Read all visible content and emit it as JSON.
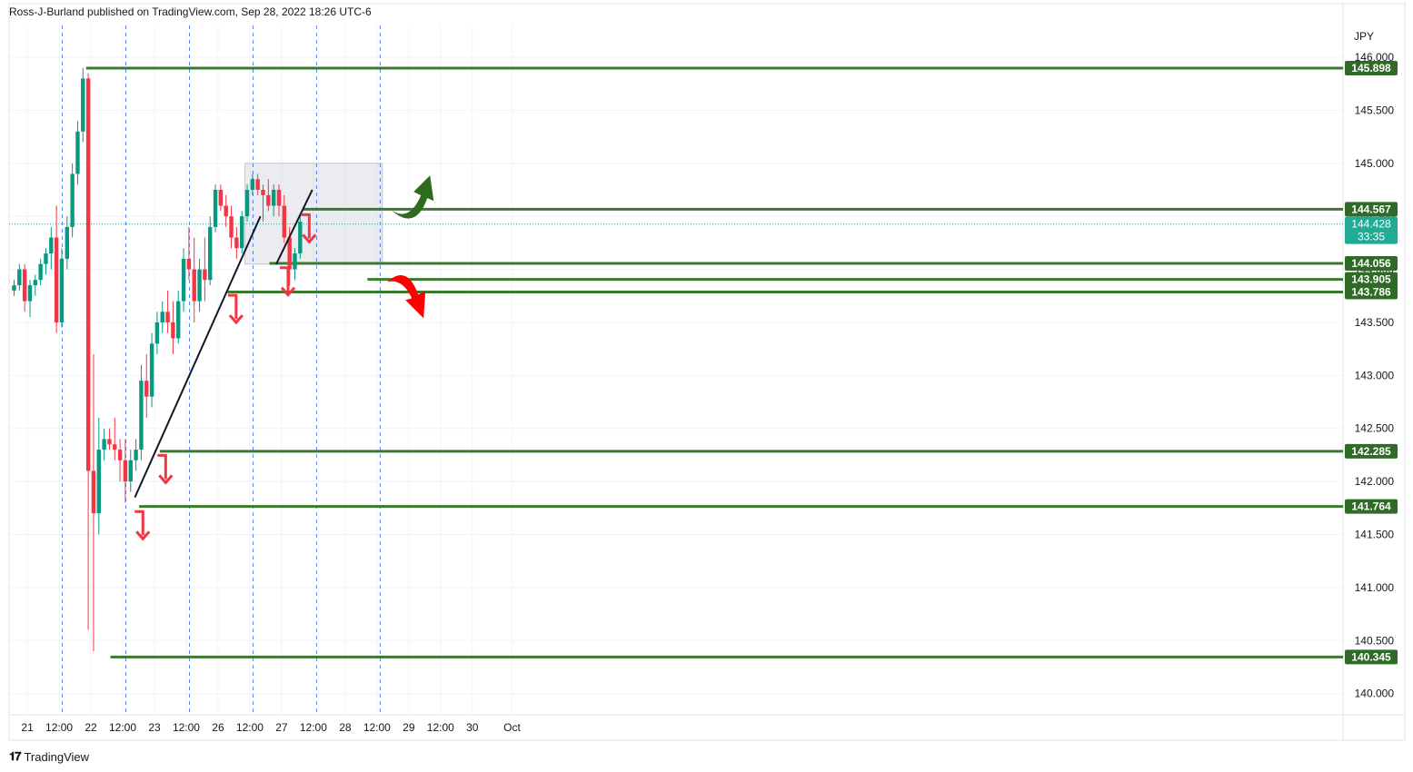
{
  "header": {
    "publisher_line": "Ross-J-Burland published on TradingView.com, Sep 28, 2022 18:26 UTC-6"
  },
  "footer": {
    "brand": "TradingView",
    "logo_icon": "tradingview-logo-icon"
  },
  "colors": {
    "up": "#089981",
    "down": "#f23645",
    "level": "#3b7a2e",
    "label_bg": "#2f6b26",
    "grid": "#f0f3fa",
    "session_line": "#2962ff",
    "box_fill": "#d1d4dc",
    "current_price": "#22ab94",
    "arrow_up": "#2e6b1f",
    "arrow_down": "#ff0000"
  },
  "chart_data": {
    "type": "candlestick",
    "symbol_currency": "JPY",
    "ylim": [
      139.8,
      146.3
    ],
    "price_ticks": [
      "140.000",
      "140.500",
      "141.000",
      "141.500",
      "142.000",
      "142.500",
      "143.000",
      "143.500",
      "144.000",
      "144.500",
      "145.000",
      "145.500",
      "146.000"
    ],
    "time_ticks": [
      {
        "label": "21",
        "i": 2.5
      },
      {
        "label": "12:00",
        "i": 8.5
      },
      {
        "label": "22",
        "i": 14.5
      },
      {
        "label": "12:00",
        "i": 20.5
      },
      {
        "label": "23",
        "i": 26.5
      },
      {
        "label": "12:00",
        "i": 32.5
      },
      {
        "label": "26",
        "i": 38.5
      },
      {
        "label": "12:00",
        "i": 44.5
      },
      {
        "label": "27",
        "i": 50.5
      },
      {
        "label": "12:00",
        "i": 56.5
      },
      {
        "label": "28",
        "i": 62.5
      },
      {
        "label": "12:00",
        "i": 68.5
      },
      {
        "label": "29",
        "i": 74.5
      },
      {
        "label": "12:00",
        "i": 80.5
      },
      {
        "label": "30",
        "i": 86.5
      },
      {
        "label": "Oct",
        "i": 94
      }
    ],
    "session_lines_i": [
      9.1,
      21.1,
      33.1,
      45.1,
      57.1,
      69.1
    ],
    "candles": [
      [
        143.8,
        143.9,
        143.75,
        143.85
      ],
      [
        143.85,
        144.05,
        143.8,
        144.0
      ],
      [
        144.0,
        144.05,
        143.6,
        143.7
      ],
      [
        143.7,
        143.9,
        143.55,
        143.85
      ],
      [
        143.85,
        143.95,
        143.75,
        143.9
      ],
      [
        143.9,
        144.1,
        143.85,
        144.05
      ],
      [
        144.05,
        144.2,
        143.95,
        144.15
      ],
      [
        144.15,
        144.4,
        144.0,
        144.3
      ],
      [
        144.3,
        144.6,
        143.4,
        143.5
      ],
      [
        143.5,
        144.2,
        143.45,
        144.1
      ],
      [
        144.1,
        144.5,
        144.0,
        144.4
      ],
      [
        144.4,
        145.0,
        144.3,
        144.9
      ],
      [
        144.9,
        145.4,
        144.8,
        145.3
      ],
      [
        145.3,
        145.9,
        145.2,
        145.8
      ],
      [
        145.8,
        145.85,
        140.6,
        142.1
      ],
      [
        142.1,
        143.2,
        140.4,
        141.7
      ],
      [
        141.7,
        142.6,
        141.5,
        142.3
      ],
      [
        142.3,
        142.5,
        142.2,
        142.4
      ],
      [
        142.4,
        142.5,
        142.3,
        142.35
      ],
      [
        142.35,
        142.6,
        142.2,
        142.3
      ],
      [
        142.3,
        142.4,
        142.0,
        142.2
      ],
      [
        142.2,
        142.4,
        141.8,
        142.0
      ],
      [
        142.0,
        142.3,
        141.9,
        142.2
      ],
      [
        142.2,
        142.4,
        142.1,
        142.3
      ],
      [
        142.3,
        143.1,
        142.2,
        142.95
      ],
      [
        142.95,
        143.2,
        142.6,
        142.8
      ],
      [
        142.8,
        143.4,
        142.7,
        143.3
      ],
      [
        143.3,
        143.6,
        143.2,
        143.5
      ],
      [
        143.5,
        143.7,
        143.4,
        143.6
      ],
      [
        143.6,
        143.8,
        143.4,
        143.5
      ],
      [
        143.5,
        143.7,
        143.2,
        143.35
      ],
      [
        143.35,
        143.8,
        143.3,
        143.7
      ],
      [
        143.7,
        144.2,
        143.6,
        144.1
      ],
      [
        144.1,
        144.4,
        143.9,
        144.0
      ],
      [
        144.0,
        144.3,
        143.5,
        143.7
      ],
      [
        143.7,
        144.1,
        143.6,
        144.0
      ],
      [
        144.0,
        144.3,
        143.7,
        143.9
      ],
      [
        143.9,
        144.5,
        143.85,
        144.4
      ],
      [
        144.4,
        144.8,
        144.35,
        144.75
      ],
      [
        144.75,
        144.8,
        144.55,
        144.6
      ],
      [
        144.6,
        144.7,
        144.4,
        144.5
      ],
      [
        144.5,
        144.6,
        144.2,
        144.3
      ],
      [
        144.3,
        144.4,
        144.1,
        144.2
      ],
      [
        144.2,
        144.55,
        144.15,
        144.5
      ],
      [
        144.5,
        144.8,
        144.45,
        144.75
      ],
      [
        144.75,
        144.9,
        144.7,
        144.85
      ],
      [
        144.85,
        144.9,
        144.7,
        144.75
      ],
      [
        144.75,
        144.8,
        144.45,
        144.7
      ],
      [
        144.7,
        144.85,
        144.55,
        144.6
      ],
      [
        144.6,
        144.8,
        144.5,
        144.75
      ],
      [
        144.75,
        144.8,
        144.5,
        144.6
      ],
      [
        144.6,
        144.7,
        144.25,
        144.3
      ],
      [
        144.3,
        144.4,
        143.85,
        144.0
      ],
      [
        144.0,
        144.2,
        143.9,
        144.15
      ],
      [
        144.15,
        144.5,
        144.1,
        144.45
      ]
    ],
    "levels": [
      {
        "value": 145.898,
        "label": "145.898",
        "from_i": 13.6
      },
      {
        "value": 144.567,
        "label": "144.567",
        "from_i": 54.5
      },
      {
        "value": 144.056,
        "label": "144.056",
        "from_i": 48.2
      },
      {
        "value": 143.905,
        "label": "143.905",
        "from_i": 66.7
      },
      {
        "value": 143.786,
        "label": "143.786",
        "from_i": 40.3
      },
      {
        "value": 142.285,
        "label": "142.285",
        "from_i": 27.5
      },
      {
        "value": 141.764,
        "label": "141.764",
        "from_i": 23.6
      },
      {
        "value": 140.345,
        "label": "140.345",
        "from_i": 18.2
      }
    ],
    "current_price": {
      "value": 144.428,
      "label": "144.428",
      "countdown": "33:35"
    },
    "range_box": {
      "i0": 43.6,
      "i1": 69.5,
      "p0": 144.05,
      "p1": 145.0
    },
    "trendlines": [
      {
        "i0": 22.8,
        "p0": 141.85,
        "i1": 46.5,
        "p1": 144.5
      },
      {
        "i0": 49.5,
        "p0": 144.05,
        "i1": 56.3,
        "p1": 144.75
      }
    ],
    "break_markers": [
      {
        "i": 23.8,
        "p": 141.75
      },
      {
        "i": 28.1,
        "p": 142.28
      },
      {
        "i": 41.4,
        "p": 143.79
      },
      {
        "i": 51.2,
        "p": 144.05
      },
      {
        "i": 55.2,
        "p": 144.55
      }
    ],
    "scenario_arrows": [
      {
        "direction": "up",
        "i": 72.0,
        "p": 144.8,
        "icon": "curved-arrow-up-icon"
      },
      {
        "direction": "down",
        "i": 72.5,
        "p": 143.95,
        "icon": "curved-arrow-down-icon"
      }
    ]
  }
}
